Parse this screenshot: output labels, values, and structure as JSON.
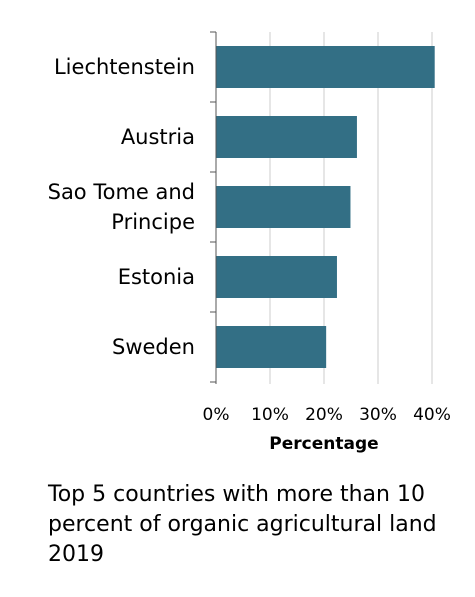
{
  "chart_data": {
    "type": "bar",
    "orientation": "horizontal",
    "categories": [
      [
        "Liechtenstein"
      ],
      [
        "Austria"
      ],
      [
        "Sao Tome and",
        "Principe"
      ],
      [
        "Estonia"
      ],
      [
        "Sweden"
      ]
    ],
    "values": [
      40.5,
      26.1,
      24.9,
      22.4,
      20.4
    ],
    "xlabel": "Percentage",
    "ylabel": "",
    "xlim": [
      0,
      40
    ],
    "xticks": [
      "0%",
      "10%",
      "20%",
      "30%",
      "40%"
    ],
    "grid": true,
    "bar_color": "#336f85",
    "grid_color": "#cccccc",
    "axis_color": "#555555"
  },
  "caption": "Top 5 countries with more than 10 percent of organic agricultural land 2019"
}
